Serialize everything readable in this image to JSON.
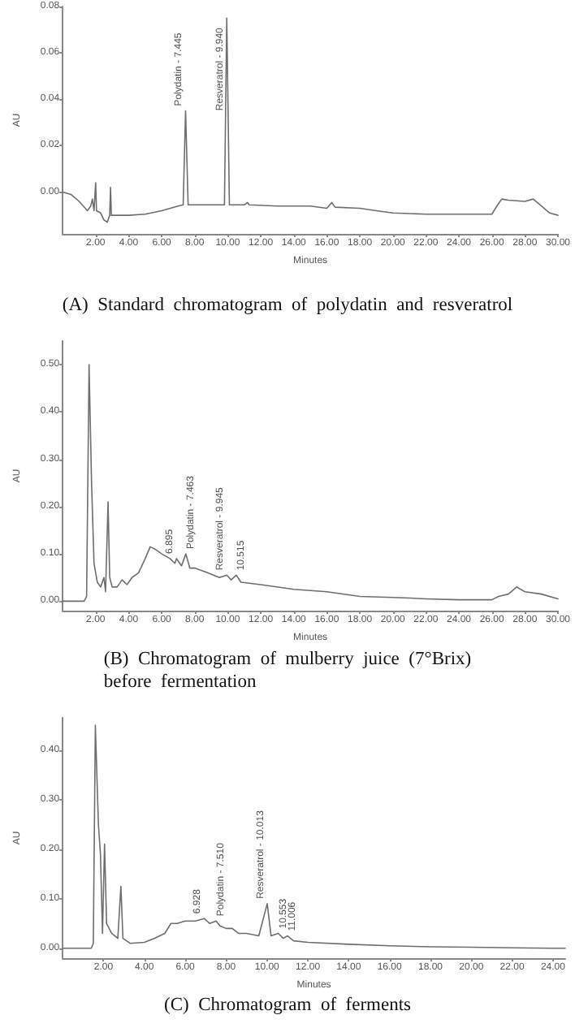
{
  "chart_data": [
    {
      "type": "line",
      "title": "(A)  Standard  chromatogram  of  polydatin  and  resveratrol",
      "xlabel": "Minutes",
      "ylabel": "AU",
      "color": "#6e6e6e",
      "x": [
        0,
        0.5,
        1.0,
        1.5,
        1.7,
        1.8,
        1.9,
        2.0,
        2.05,
        2.3,
        2.5,
        2.7,
        2.85,
        2.9,
        2.95,
        3.5,
        4,
        5,
        6,
        7,
        7.3,
        7.445,
        7.6,
        8,
        9,
        9.8,
        9.94,
        10.1,
        11,
        11.2,
        11.3,
        13,
        15,
        16,
        16.3,
        16.5,
        18,
        18.5,
        19,
        20,
        22,
        24,
        26,
        26.3,
        26.6,
        27,
        28,
        28.5,
        29,
        29.5,
        30
      ],
      "values": [
        0,
        -0.001,
        -0.004,
        -0.008,
        -0.006,
        -0.003,
        -0.008,
        0.004,
        -0.008,
        -0.009,
        -0.012,
        -0.013,
        -0.01,
        0.002,
        -0.01,
        -0.01,
        -0.01,
        -0.0095,
        -0.008,
        -0.006,
        -0.0055,
        0.035,
        -0.0055,
        -0.0055,
        -0.0055,
        -0.0055,
        0.075,
        -0.0055,
        -0.0055,
        -0.0045,
        -0.0055,
        -0.006,
        -0.006,
        -0.007,
        -0.0045,
        -0.0065,
        -0.007,
        -0.0075,
        -0.008,
        -0.009,
        -0.0095,
        -0.0095,
        -0.0095,
        -0.006,
        -0.003,
        -0.0035,
        -0.004,
        -0.003,
        -0.006,
        -0.009,
        -0.01
      ],
      "xlim": [
        0,
        30
      ],
      "ylim": [
        -0.018,
        0.08
      ],
      "xticks": [
        {
          "value": 2,
          "label": "2.00"
        },
        {
          "value": 4,
          "label": "4.00"
        },
        {
          "value": 6,
          "label": "6.00"
        },
        {
          "value": 8,
          "label": "8.00"
        },
        {
          "value": 10,
          "label": "10.00"
        },
        {
          "value": 12,
          "label": "12.00"
        },
        {
          "value": 14,
          "label": "14.00"
        },
        {
          "value": 16,
          "label": "16.00"
        },
        {
          "value": 18,
          "label": "18.00"
        },
        {
          "value": 20,
          "label": "20.00"
        },
        {
          "value": 22,
          "label": "22.00"
        },
        {
          "value": 24,
          "label": "24.00"
        },
        {
          "value": 26,
          "label": "26.00"
        },
        {
          "value": 28,
          "label": "28.00"
        },
        {
          "value": 30,
          "label": "30.00"
        }
      ],
      "yticks": [
        {
          "value": 0,
          "label": "0.00"
        },
        {
          "value": 0.02,
          "label": "0.02"
        },
        {
          "value": 0.04,
          "label": "0.04"
        },
        {
          "value": 0.06,
          "label": "0.06"
        },
        {
          "value": 0.08,
          "label": "0.08"
        }
      ],
      "annotations": [
        {
          "text": "Polydatin - 7.445",
          "x": 7.445,
          "y": 0.035
        },
        {
          "text": "Resveratrol - 9.940",
          "x": 9.94,
          "y": 0.033
        }
      ]
    },
    {
      "type": "line",
      "title": "(B)  Chromatogram  of  mulberry  juice  (7°Brix)\nbefore  fermentation",
      "xlabel": "Minutes",
      "ylabel": "AU",
      "color": "#6e6e6e",
      "x": [
        0,
        1.3,
        1.45,
        1.6,
        1.75,
        1.9,
        2.1,
        2.3,
        2.5,
        2.6,
        2.75,
        2.85,
        3.0,
        3.3,
        3.6,
        3.9,
        4.2,
        4.6,
        5.0,
        5.3,
        5.6,
        6.0,
        6.5,
        6.8,
        6.895,
        7.2,
        7.463,
        7.7,
        8.0,
        8.4,
        8.8,
        9.5,
        9.945,
        10.2,
        10.515,
        10.8,
        12,
        14,
        16,
        18,
        20,
        22,
        24,
        26,
        26.4,
        27,
        27.5,
        28,
        29,
        30
      ],
      "values": [
        0,
        0,
        0.01,
        0.5,
        0.25,
        0.08,
        0.04,
        0.03,
        0.05,
        0.02,
        0.21,
        0.05,
        0.03,
        0.03,
        0.045,
        0.035,
        0.05,
        0.06,
        0.09,
        0.115,
        0.11,
        0.1,
        0.09,
        0.08,
        0.09,
        0.075,
        0.1,
        0.07,
        0.07,
        0.065,
        0.06,
        0.05,
        0.055,
        0.045,
        0.055,
        0.04,
        0.035,
        0.025,
        0.02,
        0.01,
        0.008,
        0.005,
        0.003,
        0.003,
        0.01,
        0.015,
        0.03,
        0.02,
        0.015,
        0.005
      ],
      "xlim": [
        0,
        30
      ],
      "ylim": [
        -0.02,
        0.55
      ],
      "xticks": [
        {
          "value": 2,
          "label": "2.00"
        },
        {
          "value": 4,
          "label": "4.00"
        },
        {
          "value": 6,
          "label": "6.00"
        },
        {
          "value": 8,
          "label": "8.00"
        },
        {
          "value": 10,
          "label": "10.00"
        },
        {
          "value": 12,
          "label": "12.00"
        },
        {
          "value": 14,
          "label": "14.00"
        },
        {
          "value": 16,
          "label": "16.00"
        },
        {
          "value": 18,
          "label": "18.00"
        },
        {
          "value": 20,
          "label": "20.00"
        },
        {
          "value": 22,
          "label": "22.00"
        },
        {
          "value": 24,
          "label": "24.00"
        },
        {
          "value": 26,
          "label": "26.00"
        },
        {
          "value": 28,
          "label": "28.00"
        },
        {
          "value": 30,
          "label": "30.00"
        }
      ],
      "yticks": [
        {
          "value": 0,
          "label": "0.00"
        },
        {
          "value": 0.1,
          "label": "0.10"
        },
        {
          "value": 0.2,
          "label": "0.20"
        },
        {
          "value": 0.3,
          "label": "0.30"
        },
        {
          "value": 0.4,
          "label": "0.40"
        },
        {
          "value": 0.5,
          "label": "0.50"
        }
      ],
      "annotations": [
        {
          "text": "6.895",
          "x": 6.895,
          "y": 0.09
        },
        {
          "text": "Polydatin - 7.463",
          "x": 7.463,
          "y": 0.1
        },
        {
          "text": "Resveratrol - 9.945",
          "x": 9.945,
          "y": 0.055
        },
        {
          "text": "10.515",
          "x": 10.515,
          "y": 0.055
        }
      ]
    },
    {
      "type": "line",
      "title": "(C)  Chromatogram  of  ferments",
      "xlabel": "Minutes",
      "ylabel": "AU",
      "color": "#6e6e6e",
      "x": [
        0,
        1.4,
        1.5,
        1.6,
        1.75,
        1.85,
        1.95,
        2.05,
        2.15,
        2.4,
        2.7,
        2.85,
        2.95,
        3.3,
        4.0,
        4.5,
        5.0,
        5.3,
        5.6,
        6,
        6.5,
        6.928,
        7.2,
        7.51,
        7.7,
        8.0,
        8.3,
        8.6,
        9,
        9.6,
        10.013,
        10.2,
        10.553,
        10.8,
        11.006,
        11.3,
        12,
        14,
        16,
        18,
        20,
        22,
        24,
        24.6
      ],
      "values": [
        0,
        0,
        0.01,
        0.45,
        0.25,
        0.19,
        0.03,
        0.21,
        0.05,
        0.03,
        0.02,
        0.125,
        0.02,
        0.01,
        0.012,
        0.02,
        0.03,
        0.05,
        0.05,
        0.055,
        0.055,
        0.06,
        0.05,
        0.055,
        0.045,
        0.04,
        0.04,
        0.03,
        0.03,
        0.025,
        0.09,
        0.025,
        0.03,
        0.02,
        0.025,
        0.015,
        0.012,
        0.008,
        0.005,
        0.003,
        0.002,
        0.001,
        0,
        0
      ],
      "xlim": [
        0,
        24.6
      ],
      "ylim": [
        -0.02,
        0.465
      ],
      "xticks": [
        {
          "value": 2,
          "label": "2.00"
        },
        {
          "value": 4,
          "label": "4.00"
        },
        {
          "value": 6,
          "label": "6.00"
        },
        {
          "value": 8,
          "label": "8.00"
        },
        {
          "value": 10,
          "label": "10.00"
        },
        {
          "value": 12,
          "label": "12.00"
        },
        {
          "value": 14,
          "label": "14.00"
        },
        {
          "value": 16,
          "label": "16.00"
        },
        {
          "value": 18,
          "label": "18.00"
        },
        {
          "value": 20,
          "label": "20.00"
        },
        {
          "value": 22,
          "label": "22.00"
        },
        {
          "value": 24,
          "label": "24.00"
        }
      ],
      "yticks": [
        {
          "value": 0,
          "label": "0.00"
        },
        {
          "value": 0.1,
          "label": "0.10"
        },
        {
          "value": 0.2,
          "label": "0.20"
        },
        {
          "value": 0.3,
          "label": "0.30"
        },
        {
          "value": 0.4,
          "label": "0.40"
        }
      ],
      "annotations": [
        {
          "text": "6.928",
          "x": 6.928,
          "y": 0.06
        },
        {
          "text": "Polydatin - 7.510",
          "x": 7.51,
          "y": 0.055
        },
        {
          "text": "Resveratrol - 10.013",
          "x": 10.013,
          "y": 0.09
        },
        {
          "text": "10.553",
          "x": 10.553,
          "y": 0.03
        },
        {
          "text": "11.006",
          "x": 11.006,
          "y": 0.025
        }
      ]
    }
  ]
}
